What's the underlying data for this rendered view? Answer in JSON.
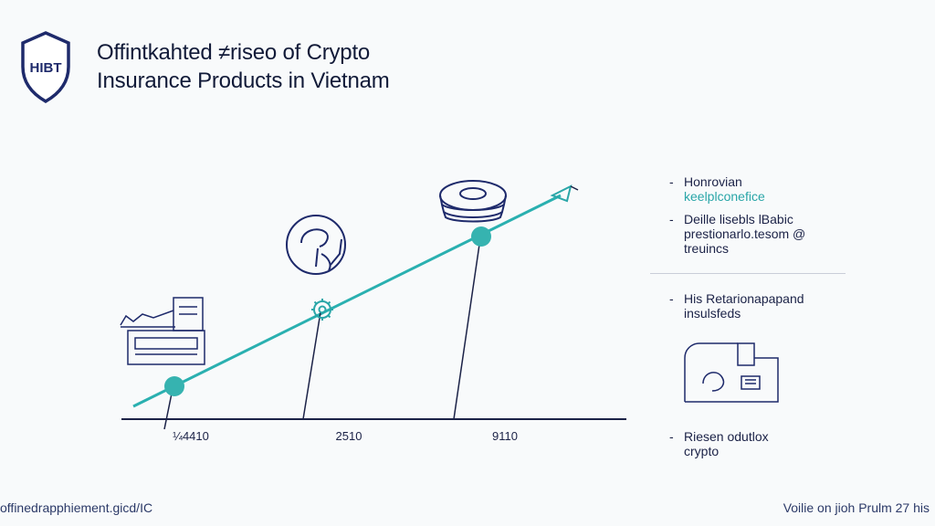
{
  "logo": {
    "text": "HIBT"
  },
  "title": {
    "line1": "Offintkahted ≠riseo of Crypto",
    "line2": "Insurance Products in Vietnam"
  },
  "colors": {
    "accent": "#2ab0b0",
    "ink": "#1b2247",
    "background": "#f8fafb"
  },
  "chart_data": {
    "type": "line",
    "x_ticks": [
      "¼4410",
      "2510",
      "9110"
    ],
    "series": [
      {
        "values": [
          2,
          5,
          8
        ]
      }
    ],
    "trend_arrow": true,
    "grid": false
  },
  "side_notes": [
    {
      "bullet": "-",
      "lines": [
        "Honrovian"
      ],
      "accent_lines": [
        "keelplconefice"
      ]
    },
    {
      "bullet": "-",
      "lines": [
        "Deille lisebls lBabic",
        "prestionarlo.tesom @",
        "treuincs"
      ],
      "accent_lines": []
    },
    {
      "bullet": "-",
      "lines": [
        "His Retarionapapand",
        "insulsfeds"
      ],
      "accent_lines": []
    },
    {
      "bullet": "-",
      "lines": [
        "Riesen odutlox",
        "crypto"
      ],
      "accent_lines": []
    }
  ],
  "footer": {
    "left": "offinedrapphiement.gicd/IC",
    "right": "Voilie on jioh Prulm 27 his"
  },
  "icons": [
    "shield-logo-icon",
    "desk-computer-icon",
    "gear-icon",
    "coin-icon",
    "stacked-coins-icon",
    "arrow-head-icon",
    "device-illustration-icon"
  ]
}
